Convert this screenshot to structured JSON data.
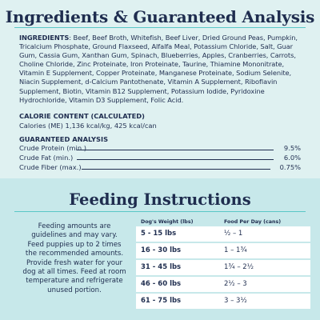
{
  "ingredients_section": {
    "title": "Ingredients & Guaranteed Analysis",
    "ingredients_label": "INGREDIENTS",
    "ingredients_text": ": Beef, Beef Broth, Whitefish, Beef Liver, Dried Ground Peas, Pumpkin, Tricalcium Phosphate, Ground Flaxseed, Alfalfa Meal, Potassium Chloride, Salt, Guar Gum, Cassia Gum, Xanthan Gum, Spinach, Blueberries, Apples, Cranberries, Carrots, Choline Chloride, Zinc Proteinate, Iron Proteinate, Taurine, Thiamine Mononitrate, Vitamin E Supplement, Copper Proteinate, Manganese Proteinate, Sodium Selenite, Niacin Supplement, d-Calcium Pantothenate, Vitamin A Supplement, Riboflavin Supplement, Biotin, Vitamin B12 Supplement, Potassium Iodide, Pyridoxine Hydrochloride, Vitamin D3 Supplement, Folic Acid.",
    "calorie_heading": "CALORIE CONTENT (CALCULATED)",
    "calorie_text": "Calories (ME) 1,136 kcal/kg, 425 kcal/can",
    "ga_heading": "GUARANTEED ANALYSIS",
    "ga_rows": [
      {
        "label": "Crude Protein (min.)",
        "value": "9.5%"
      },
      {
        "label": "Crude Fat (min.)",
        "value": "6.0%"
      },
      {
        "label": "Crude Fiber (max.)",
        "value": "0.75%"
      }
    ]
  },
  "feeding_section": {
    "title": "Feeding Instructions",
    "note": "Feeding amounts are guidelines and may vary. Feed puppies up to 2 times the recommended amounts. Provide fresh water for your dog at all times. Feed at room temperature and refrigerate unused portion.",
    "col_weight": "Dog's Weight (lbs)",
    "col_food": "Food Per Day (cans)",
    "rows": [
      {
        "weight": "5 - 15 lbs",
        "food": "½ – 1"
      },
      {
        "weight": "16 - 30 lbs",
        "food": "1 – 1¾"
      },
      {
        "weight": "31 - 45 lbs",
        "food": "1¾ – 2½"
      },
      {
        "weight": "46 - 60 lbs",
        "food": "2½ – 3"
      },
      {
        "weight": "61 - 75 lbs",
        "food": "3 – 3½"
      }
    ]
  },
  "colors": {
    "navy": "#1f2d4f",
    "top_bg": "#dff1f1",
    "bottom_bg": "#c7e8ea",
    "accent_rule": "#5ac7c7"
  }
}
